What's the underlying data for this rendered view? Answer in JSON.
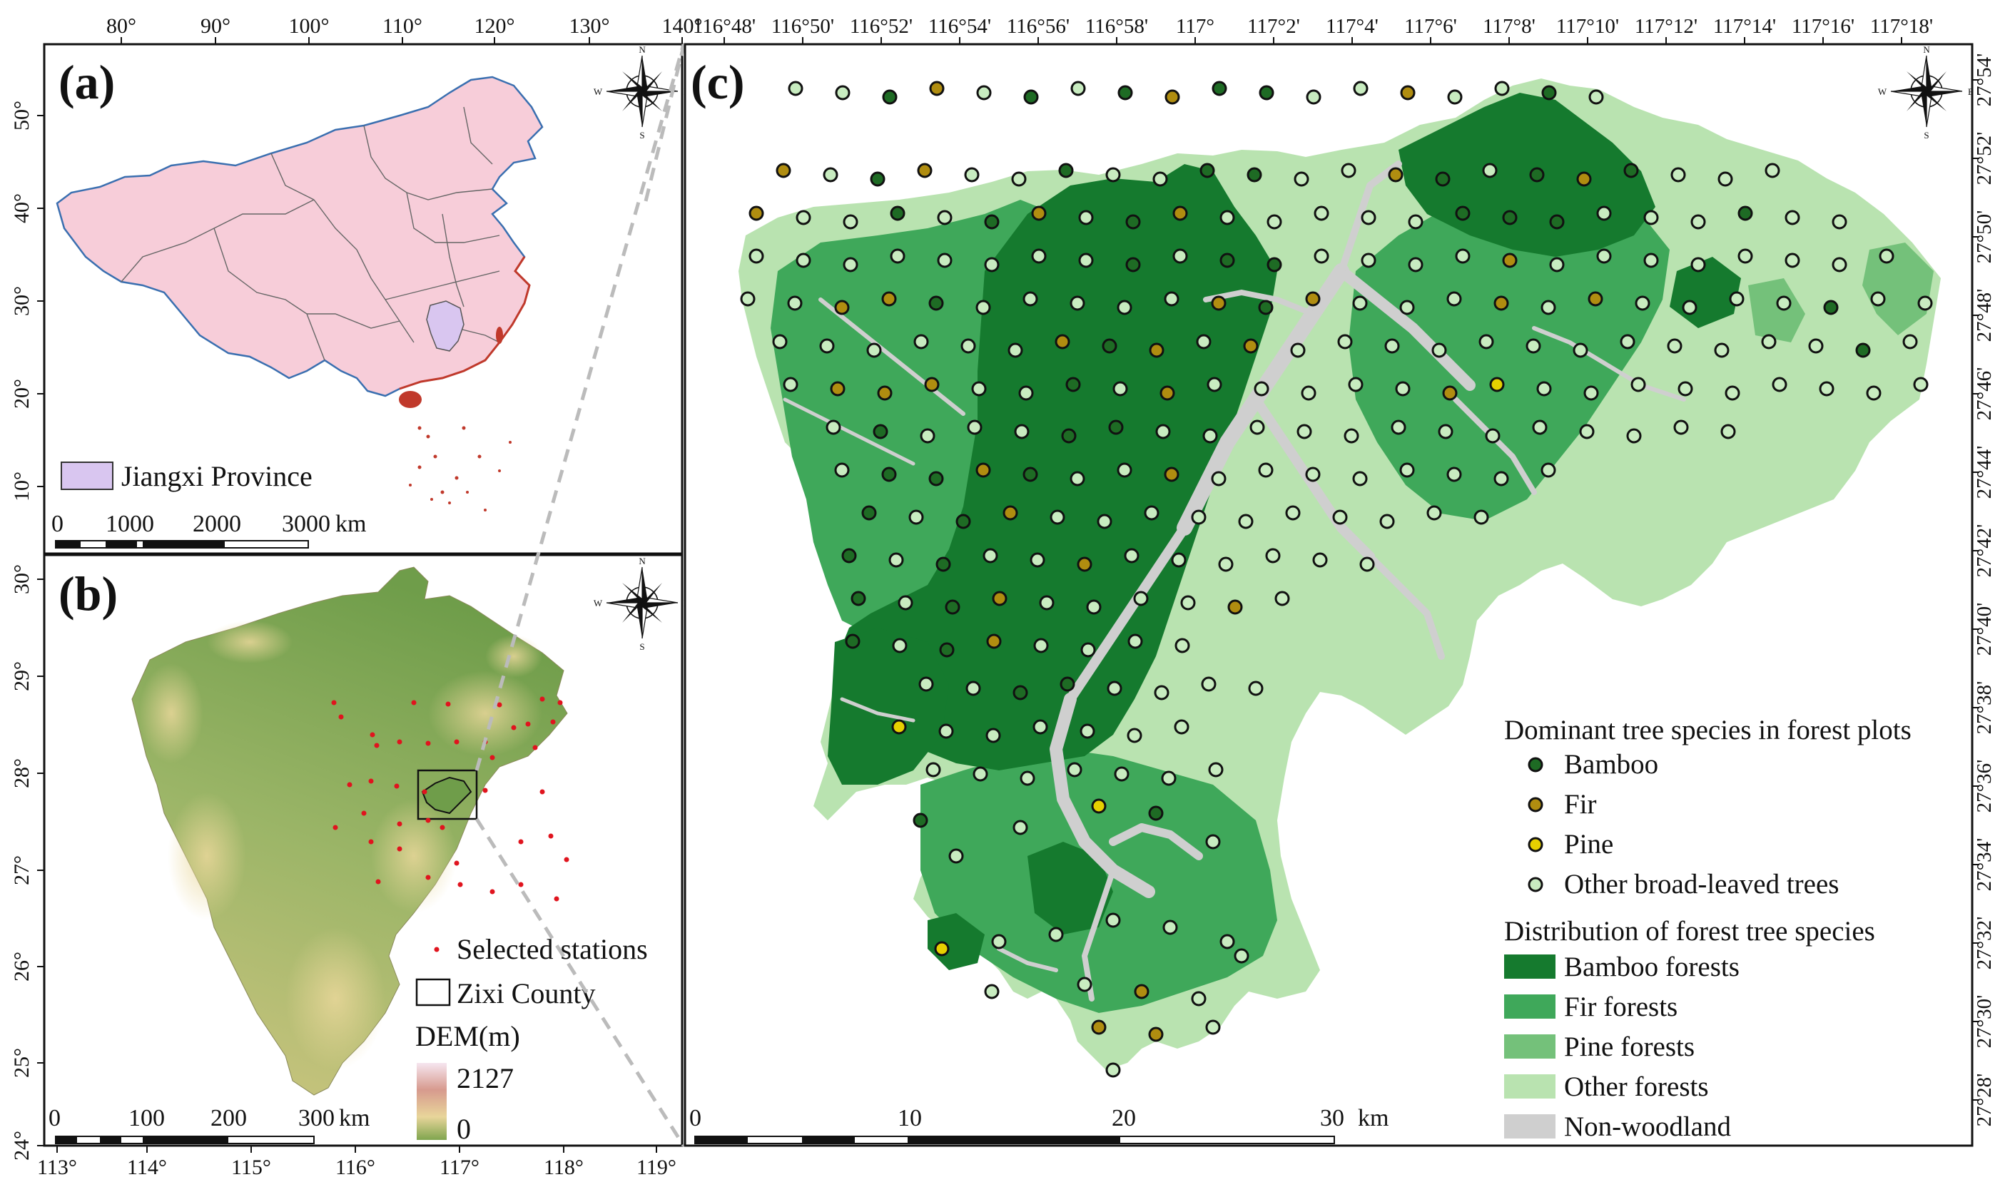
{
  "panel_a": {
    "label": "(a)",
    "top_ticks": [
      "80°",
      "90°",
      "100°",
      "110°",
      "120°",
      "130°",
      "140°"
    ],
    "left_ticks": [
      "50°",
      "40°",
      "30°",
      "20°",
      "10°"
    ],
    "legend": {
      "label": "Jiangxi Province",
      "fill": "#d9c6f0"
    },
    "scalebar": [
      "0",
      "1000",
      "2000",
      "3000",
      "km"
    ],
    "colors": {
      "land": "#f7cdd9",
      "border": "#555555",
      "coast": "#3a6fb0",
      "sea_islands": "#c0392b"
    }
  },
  "panel_b": {
    "label": "(b)",
    "left_ticks": [
      "30°",
      "29°",
      "28°",
      "27°",
      "26°",
      "25°",
      "24°"
    ],
    "bottom_ticks": [
      "113°",
      "114°",
      "115°",
      "116°",
      "117°",
      "118°",
      "119°"
    ],
    "legend": {
      "stations": "Selected stations",
      "county": "Zixi County",
      "dem_title": "DEM(m)",
      "dem_max": "2127",
      "dem_min": "0"
    },
    "scalebar": [
      "0",
      "100",
      "200",
      "300",
      "km"
    ]
  },
  "panel_c": {
    "label": "(c)",
    "top_ticks": [
      "116°48'",
      "116°50'",
      "116°52'",
      "116°54'",
      "116°56'",
      "116°58'",
      "117°",
      "117°2'",
      "117°4'",
      "117°6'",
      "117°8'",
      "117°10'",
      "117°12'",
      "117°14'",
      "117°16'",
      "117°18'"
    ],
    "right_ticks": [
      "27°54'",
      "27°52'",
      "27°50'",
      "27°48'",
      "27°46'",
      "27°44'",
      "27°42'",
      "27°40'",
      "27°38'",
      "27°36'",
      "27°34'",
      "27°32'",
      "27°30'",
      "27°28'"
    ],
    "scalebar": [
      "0",
      "10",
      "20",
      "30",
      "km"
    ],
    "legend": {
      "points_title": "Dominant tree species in forest plots",
      "points": [
        {
          "label": "Bamboo",
          "color": "#1e6b24"
        },
        {
          "label": "Fir",
          "color": "#b08d10"
        },
        {
          "label": "Pine",
          "color": "#e6d000"
        },
        {
          "label": "Other broad-leaved trees",
          "color": "#c8ecc0"
        }
      ],
      "areas_title": "Distribution of forest tree species",
      "areas": [
        {
          "label": "Bamboo forests",
          "color": "#157a2e"
        },
        {
          "label": "Fir forests",
          "color": "#3fa85a"
        },
        {
          "label": "Pine forests",
          "color": "#74c17a"
        },
        {
          "label": "Other forests",
          "color": "#b9e3b0"
        },
        {
          "label": "Non-woodland",
          "color": "#cfcfcf"
        }
      ]
    }
  },
  "compass": {
    "n": "N",
    "s": "S",
    "e": "E",
    "w": "W"
  }
}
